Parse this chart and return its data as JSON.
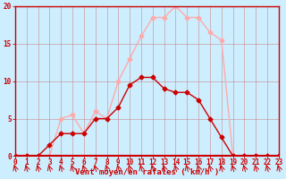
{
  "x": [
    0,
    1,
    2,
    3,
    4,
    5,
    6,
    7,
    8,
    9,
    10,
    11,
    12,
    13,
    14,
    15,
    16,
    17,
    18,
    19,
    20,
    21,
    22,
    23
  ],
  "wind_avg": [
    0,
    0,
    0,
    1.5,
    3,
    3,
    3,
    5,
    5,
    6.5,
    9.5,
    10.5,
    10.5,
    9,
    8.5,
    8.5,
    7.5,
    5,
    2.5,
    0,
    0,
    0,
    0,
    0
  ],
  "wind_gust": [
    0,
    0,
    0,
    0,
    5,
    5.5,
    3,
    6,
    5,
    10,
    13,
    16,
    18.5,
    18.5,
    20,
    18.5,
    18.5,
    16.5,
    15.5,
    0,
    0,
    0,
    0,
    0
  ],
  "avg_color": "#cc0000",
  "gust_color": "#ffaaaa",
  "bg_color": "#cceeff",
  "grid_color": "#cc6666",
  "xlabel": "Vent moyen/en rafales ( km/h )",
  "ylim": [
    0,
    20
  ],
  "xlim": [
    0,
    23
  ],
  "yticks": [
    0,
    5,
    10,
    15,
    20
  ],
  "xticks": [
    0,
    1,
    2,
    3,
    4,
    5,
    6,
    7,
    8,
    9,
    10,
    11,
    12,
    13,
    14,
    15,
    16,
    17,
    18,
    19,
    20,
    21,
    22,
    23
  ],
  "markersize": 2.5,
  "linewidth": 1.0,
  "tick_labelsize": 5.5,
  "xlabel_fontsize": 6.5
}
